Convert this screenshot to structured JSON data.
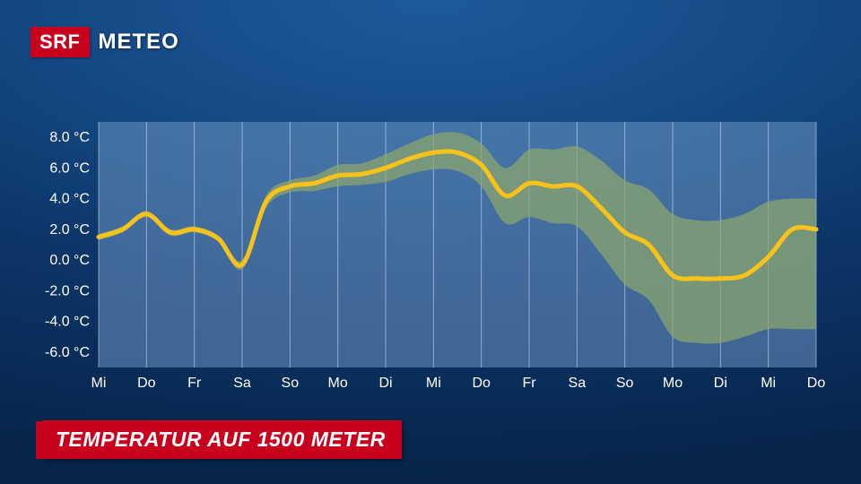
{
  "brand": {
    "badge": "SRF",
    "name": "METEO",
    "badge_bg": "#c8001e",
    "badge_fg": "#ffffff"
  },
  "title": "TEMPERATUR AUF 1500 METER",
  "chart": {
    "type": "line-with-band",
    "background_color": "#6b96c3",
    "background_opacity": 0.55,
    "grid_color": "#d9e6f2",
    "grid_opacity": 0.55,
    "axis_label_color": "#ffffff",
    "axis_label_fontsize": 16,
    "line_color": "#f7c21a",
    "line_width": 5,
    "band_color": "#8ea86b",
    "band_opacity": 0.7,
    "y": {
      "min": -7.0,
      "max": 9.0,
      "ticks": [
        8.0,
        6.0,
        4.0,
        2.0,
        0.0,
        -2.0,
        -4.0,
        -6.0
      ],
      "tick_labels": [
        "8.0 °C",
        "6.0 °C",
        "4.0 °C",
        "2.0 °C",
        "0.0 °C",
        "-2.0 °C",
        "-4.0 °C",
        "-6.0 °C"
      ]
    },
    "x": {
      "labels": [
        "Mi",
        "Do",
        "Fr",
        "Sa",
        "So",
        "Mo",
        "Di",
        "Mi",
        "Do",
        "Fr",
        "Sa",
        "So",
        "Mo",
        "Di",
        "Mi",
        "Do"
      ]
    },
    "series": {
      "mean": [
        1.5,
        2.0,
        3.0,
        1.8,
        2.0,
        1.4,
        -0.3,
        3.8,
        4.8,
        5.0,
        5.5,
        5.6,
        6.0,
        6.6,
        7.0,
        7.0,
        6.2,
        4.2,
        5.0,
        4.8,
        4.8,
        3.4,
        1.8,
        1.0,
        -1.0,
        -1.2,
        -1.2,
        -1.0,
        0.2,
        2.0,
        2.0
      ],
      "upper": [
        1.7,
        2.2,
        3.2,
        2.0,
        2.2,
        1.6,
        0.0,
        4.2,
        5.2,
        5.5,
        6.2,
        6.3,
        6.9,
        7.6,
        8.2,
        8.3,
        7.6,
        6.0,
        7.2,
        7.2,
        7.4,
        6.5,
        5.2,
        4.6,
        3.0,
        2.6,
        2.6,
        3.0,
        3.8,
        4.0,
        4.0
      ],
      "lower": [
        1.3,
        1.8,
        2.8,
        1.6,
        1.8,
        1.2,
        -0.6,
        3.4,
        4.4,
        4.5,
        4.8,
        4.9,
        5.1,
        5.6,
        5.9,
        5.8,
        4.8,
        2.4,
        2.8,
        2.4,
        2.2,
        0.4,
        -1.6,
        -2.6,
        -5.0,
        -5.4,
        -5.4,
        -5.0,
        -4.5,
        -4.5,
        -4.5
      ]
    }
  }
}
